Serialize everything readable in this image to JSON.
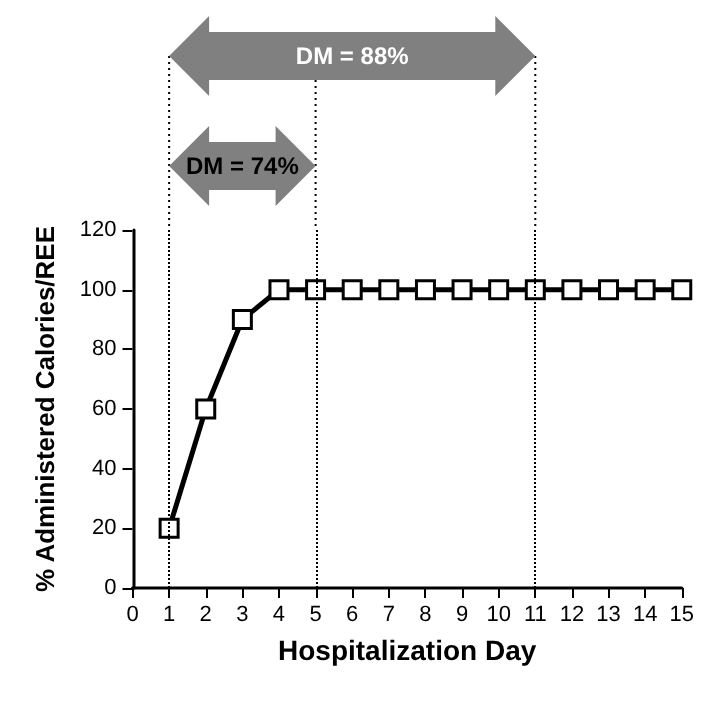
{
  "chart_data": {
    "type": "line",
    "xlabel": "Hospitalization Day",
    "ylabel": "% Administered Calories/REE",
    "x": [
      1,
      2,
      3,
      4,
      5,
      6,
      7,
      8,
      9,
      10,
      11,
      12,
      13,
      14,
      15
    ],
    "series": [
      {
        "color": "#000000",
        "values": [
          20,
          60,
          90,
          100,
          100,
          100,
          100,
          100,
          100,
          100,
          100,
          100,
          100,
          100,
          100
        ]
      }
    ],
    "xlim": [
      0,
      15
    ],
    "xticks": [
      0,
      1,
      2,
      3,
      4,
      5,
      6,
      7,
      8,
      9,
      10,
      11,
      12,
      13,
      14,
      15
    ],
    "ylim": [
      0,
      120
    ],
    "yticks": [
      0,
      20,
      40,
      60,
      80,
      100,
      120
    ],
    "ref_lines": [
      {
        "axis": "x",
        "value": 1,
        "line_style": "dotted"
      },
      {
        "axis": "x",
        "value": 5,
        "line_style": "dotted"
      },
      {
        "axis": "x",
        "value": 11,
        "line_style": "dotted"
      }
    ],
    "annotations": [
      "DM = 88%",
      "DM = 74%"
    ],
    "marker": "square",
    "line_style": "solid",
    "grid": false
  }
}
